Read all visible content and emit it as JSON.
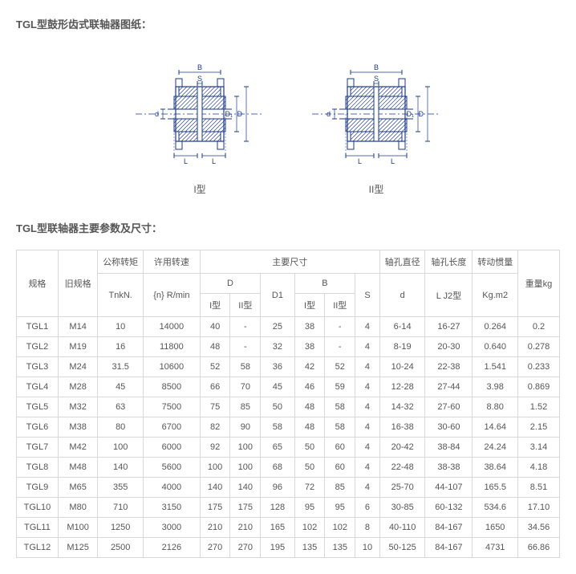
{
  "titles": {
    "drawing": "TGL型鼓形齿式联轴器图纸：",
    "table": "TGL型联轴器主要参数及尺寸：",
    "cap1": "I型",
    "cap2": "II型"
  },
  "diagram": {
    "stroke": "#1a3a8a",
    "hatch": "#1a3a8a",
    "fill": "#ffffff"
  },
  "headers": {
    "spec": "规格",
    "oldspec": "旧规格",
    "torque": "公称转矩",
    "torque_unit": "TnkN.",
    "speed": "许用转速",
    "speed_unit": "{n} R/min",
    "main_dim": "主要尺寸",
    "D": "D",
    "D_I": "I型",
    "D_II": "II型",
    "D1": "D1",
    "B": "B",
    "B_I": "I型",
    "B_II": "II型",
    "S": "S",
    "bore": "轴孔直径",
    "bore_d": "d",
    "hublen": "轴孔长度",
    "hublen_u": "L J2型",
    "inertia": "转动惯量",
    "inertia_u": "Kg.m2",
    "mass": "重量kg"
  },
  "rows": [
    {
      "spec": "TGL1",
      "old": "M14",
      "tn": "10",
      "rpm": "14000",
      "dI": "40",
      "dII": "-",
      "d1": "25",
      "bI": "38",
      "bII": "-",
      "s": "4",
      "d": "6-14",
      "l": "16-27",
      "j": "0.264",
      "m": "0.2"
    },
    {
      "spec": "TGL2",
      "old": "M19",
      "tn": "16",
      "rpm": "11800",
      "dI": "48",
      "dII": "-",
      "d1": "32",
      "bI": "38",
      "bII": "-",
      "s": "4",
      "d": "8-19",
      "l": "20-30",
      "j": "0.640",
      "m": "0.278"
    },
    {
      "spec": "TGL3",
      "old": "M24",
      "tn": "31.5",
      "rpm": "10600",
      "dI": "52",
      "dII": "58",
      "d1": "36",
      "bI": "42",
      "bII": "52",
      "s": "4",
      "d": "10-24",
      "l": "22-38",
      "j": "1.541",
      "m": "0.233"
    },
    {
      "spec": "TGL4",
      "old": "M28",
      "tn": "45",
      "rpm": "8500",
      "dI": "66",
      "dII": "70",
      "d1": "45",
      "bI": "46",
      "bII": "59",
      "s": "4",
      "d": "12-28",
      "l": "27-44",
      "j": "3.98",
      "m": "0.869"
    },
    {
      "spec": "TGL5",
      "old": "M32",
      "tn": "63",
      "rpm": "7500",
      "dI": "75",
      "dII": "85",
      "d1": "50",
      "bI": "48",
      "bII": "58",
      "s": "4",
      "d": "14-32",
      "l": "27-60",
      "j": "8.80",
      "m": "1.52"
    },
    {
      "spec": "TGL6",
      "old": "M38",
      "tn": "80",
      "rpm": "6700",
      "dI": "82",
      "dII": "90",
      "d1": "58",
      "bI": "48",
      "bII": "58",
      "s": "4",
      "d": "16-38",
      "l": "30-60",
      "j": "14.64",
      "m": "2.15"
    },
    {
      "spec": "TGL7",
      "old": "M42",
      "tn": "100",
      "rpm": "6000",
      "dI": "92",
      "dII": "100",
      "d1": "65",
      "bI": "50",
      "bII": "60",
      "s": "4",
      "d": "20-42",
      "l": "38-84",
      "j": "24.24",
      "m": "3.14"
    },
    {
      "spec": "TGL8",
      "old": "M48",
      "tn": "140",
      "rpm": "5600",
      "dI": "100",
      "dII": "100",
      "d1": "68",
      "bI": "50",
      "bII": "60",
      "s": "4",
      "d": "22-48",
      "l": "38-38",
      "j": "38.64",
      "m": "4.18"
    },
    {
      "spec": "TGL9",
      "old": "M65",
      "tn": "355",
      "rpm": "4000",
      "dI": "140",
      "dII": "140",
      "d1": "96",
      "bI": "72",
      "bII": "85",
      "s": "4",
      "d": "25-70",
      "l": "44-107",
      "j": "165.5",
      "m": "8.51"
    },
    {
      "spec": "TGL10",
      "old": "M80",
      "tn": "710",
      "rpm": "3150",
      "dI": "175",
      "dII": "175",
      "d1": "128",
      "bI": "95",
      "bII": "95",
      "s": "6",
      "d": "30-85",
      "l": "60-132",
      "j": "534.6",
      "m": "17.10"
    },
    {
      "spec": "TGL11",
      "old": "M100",
      "tn": "1250",
      "rpm": "3000",
      "dI": "210",
      "dII": "210",
      "d1": "165",
      "bI": "102",
      "bII": "102",
      "s": "8",
      "d": "40-110",
      "l": "84-167",
      "j": "1650",
      "m": "34.56"
    },
    {
      "spec": "TGL12",
      "old": "M125",
      "tn": "2500",
      "rpm": "2126",
      "dI": "270",
      "dII": "270",
      "d1": "195",
      "bI": "135",
      "bII": "135",
      "s": "10",
      "d": "50-125",
      "l": "84-167",
      "j": "4731",
      "m": "66.86"
    }
  ],
  "colwidths": [
    "44",
    "42",
    "48",
    "60",
    "32",
    "32",
    "36",
    "32",
    "32",
    "26",
    "48",
    "50",
    "48",
    "44"
  ]
}
